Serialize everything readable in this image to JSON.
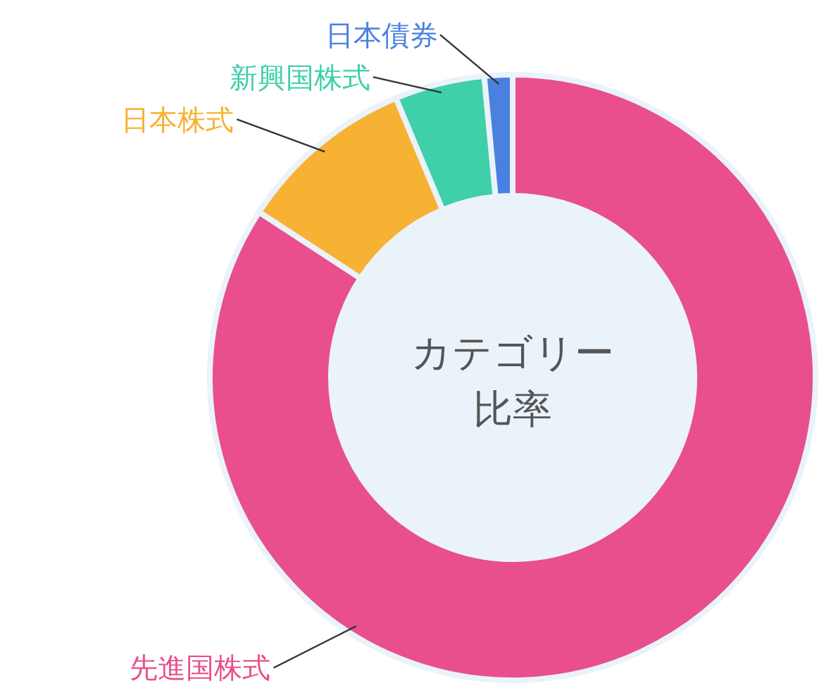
{
  "chart_data": {
    "type": "donut",
    "title": "カテゴリー比率",
    "categories": [
      "日本債券",
      "新興国株式",
      "日本株式",
      "先進国株式"
    ],
    "values": [
      1.5,
      4.8,
      9.5,
      84.2
    ],
    "colors": [
      "#4a80e0",
      "#3fcfa9",
      "#f7b133",
      "#e84f8c"
    ],
    "legend": false
  }
}
